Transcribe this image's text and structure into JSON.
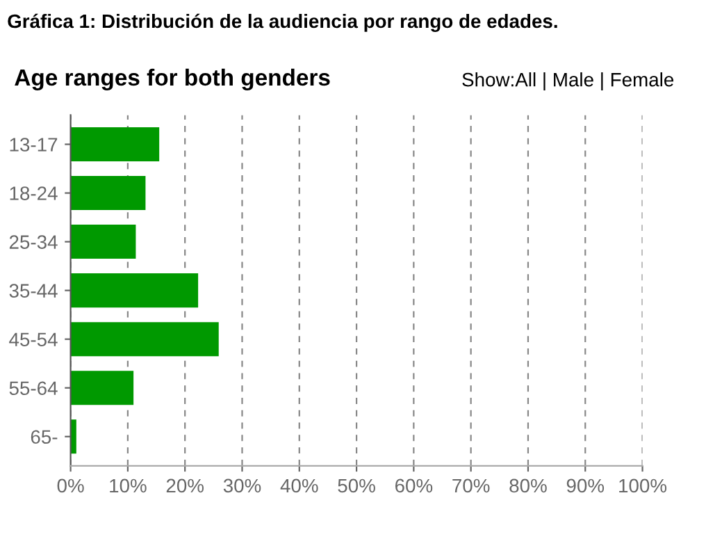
{
  "chart_data": {
    "type": "bar",
    "orientation": "horizontal",
    "title": "Gráfica 1: Distribución de la audiencia por rango de edades.",
    "subtitle": "Age ranges for both genders",
    "annotations": [
      "Show:All | Male | Female"
    ],
    "categories": [
      "13-17",
      "18-24",
      "25-34",
      "35-44",
      "45-54",
      "55-64",
      "65-"
    ],
    "values": [
      15.5,
      13.1,
      11.4,
      22.3,
      25.9,
      11.0,
      1.0
    ],
    "color": "#009900",
    "xlim": [
      0,
      100
    ],
    "xticks": [
      {
        "value": 0,
        "label": "0%"
      },
      {
        "value": 10,
        "label": "10%"
      },
      {
        "value": 20,
        "label": "20%"
      },
      {
        "value": 30,
        "label": "30%"
      },
      {
        "value": 40,
        "label": "40%"
      },
      {
        "value": 50,
        "label": "50%"
      },
      {
        "value": 60,
        "label": "60%"
      },
      {
        "value": 70,
        "label": "70%"
      },
      {
        "value": 80,
        "label": "80%"
      },
      {
        "value": 90,
        "label": "90%"
      },
      {
        "value": 100,
        "label": "100%"
      }
    ],
    "grid": "x"
  }
}
